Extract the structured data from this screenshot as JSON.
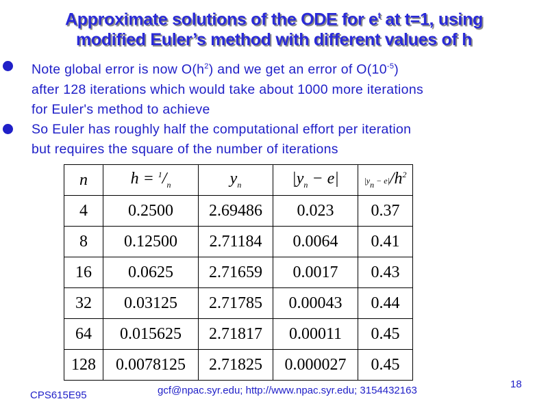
{
  "header": {
    "title": [
      "Approximate solutions of the ODE for e",
      "t",
      " at t=1, using",
      "modified Euler’s method with different values of h"
    ]
  },
  "bullets": [
    [
      "Note global error is now O(h",
      "2",
      ") and we get an error of O(10",
      "-5",
      ")",
      "after 128 iterations which would take about 1000 more iterations",
      "for Euler's method to achieve"
    ],
    [
      "So Euler has roughly half the computational effort per iteration",
      "but requires the square of the number of iterations"
    ]
  ],
  "table": {
    "headers": [
      [
        "n"
      ],
      [
        "h =",
        "1",
        "n"
      ],
      [
        "y",
        "n"
      ],
      [
        "|y",
        "n",
        " − e|"
      ],
      [
        "|y",
        "n",
        " − e|",
        "/h",
        "2"
      ]
    ],
    "rows": [
      [
        "4",
        "0.2500",
        "2.69486",
        "0.023",
        "0.37"
      ],
      [
        "8",
        "0.12500",
        "2.71184",
        "0.0064",
        "0.41"
      ],
      [
        "16",
        "0.0625",
        "2.71659",
        "0.0017",
        "0.43"
      ],
      [
        "32",
        "0.03125",
        "2.71785",
        "0.00043",
        "0.44"
      ],
      [
        "64",
        "0.015625",
        "2.71817",
        "0.00011",
        "0.45"
      ],
      [
        "128",
        "0.0078125",
        "2.71825",
        "0.000027",
        "0.45"
      ]
    ]
  },
  "footer": {
    "course": "CPS615E95",
    "contact": "gcf@npac.syr.edu; http://www.npac.syr.edu; 3154432163",
    "page": "18"
  }
}
